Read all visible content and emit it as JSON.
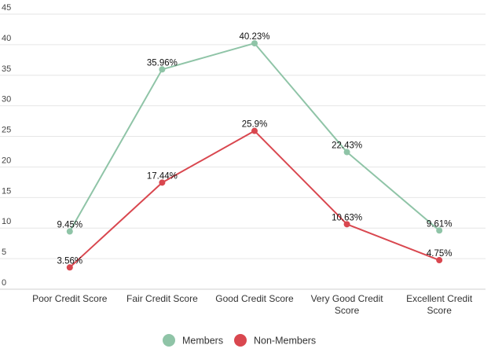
{
  "chart_data": {
    "type": "line",
    "title": "",
    "xlabel": "",
    "ylabel": "",
    "ylim": [
      0,
      45
    ],
    "yticks": [
      "0",
      "5",
      "10",
      "15",
      "20",
      "25",
      "30",
      "35",
      "40",
      "45"
    ],
    "grid": true,
    "legend_position": "bottom",
    "categories": [
      [
        "Poor Credit Score"
      ],
      [
        "Fair Credit Score"
      ],
      [
        "Good Credit Score"
      ],
      [
        "Very Good Credit",
        "Score"
      ],
      [
        "Excellent Credit",
        "Score"
      ]
    ],
    "series": [
      {
        "name": "Members",
        "color": "#8fc4a7",
        "values": [
          9.45,
          35.96,
          40.23,
          22.43,
          9.61
        ],
        "labels": [
          "9.45%",
          "35.96%",
          "40.23%",
          "22.43%",
          "9.61%"
        ]
      },
      {
        "name": "Non-Members",
        "color": "#d9474f",
        "values": [
          3.56,
          17.44,
          25.9,
          10.63,
          4.75
        ],
        "labels": [
          "3.56%",
          "17.44%",
          "25.9%",
          "10.63%",
          "4.75%"
        ]
      }
    ]
  }
}
